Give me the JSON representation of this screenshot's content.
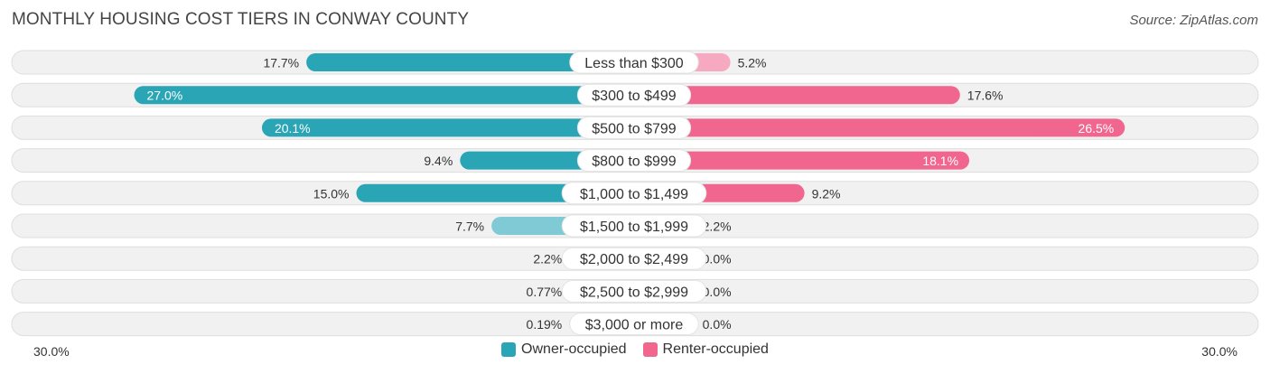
{
  "header": {
    "title": "MONTHLY HOUSING COST TIERS IN CONWAY COUNTY",
    "source": "Source: ZipAtlas.com"
  },
  "colors": {
    "owner_strong": "#2aa5b5",
    "owner_light": "#7fcad4",
    "renter_strong": "#f0668f",
    "renter_light": "#f8a9c2",
    "row_bg": "#f1f1f1",
    "row_border": "#dedede"
  },
  "chart_data": {
    "type": "bar",
    "orientation": "horizontal-diverging",
    "title": "MONTHLY HOUSING COST TIERS IN CONWAY COUNTY",
    "axis_min_label": "30.0%",
    "axis_max_label": "30.0%",
    "xlim": [
      -30,
      30
    ],
    "categories": [
      "Less than $300",
      "$300 to $499",
      "$500 to $799",
      "$800 to $999",
      "$1,000 to $1,499",
      "$1,500 to $1,999",
      "$2,000 to $2,499",
      "$2,500 to $2,999",
      "$3,000 or more"
    ],
    "series": [
      {
        "name": "Owner-occupied",
        "values": [
          17.7,
          27.0,
          20.1,
          9.4,
          15.0,
          7.7,
          2.2,
          0.77,
          0.19
        ],
        "labels": [
          "17.7%",
          "27.0%",
          "20.1%",
          "9.4%",
          "15.0%",
          "7.7%",
          "2.2%",
          "0.77%",
          "0.19%"
        ]
      },
      {
        "name": "Renter-occupied",
        "values": [
          5.2,
          17.6,
          26.5,
          18.1,
          9.2,
          2.2,
          0.0,
          0.0,
          0.0
        ],
        "labels": [
          "5.2%",
          "17.6%",
          "26.5%",
          "18.1%",
          "9.2%",
          "2.2%",
          "0.0%",
          "0.0%",
          "0.0%"
        ]
      }
    ],
    "legend": [
      "Owner-occupied",
      "Renter-occupied"
    ]
  }
}
